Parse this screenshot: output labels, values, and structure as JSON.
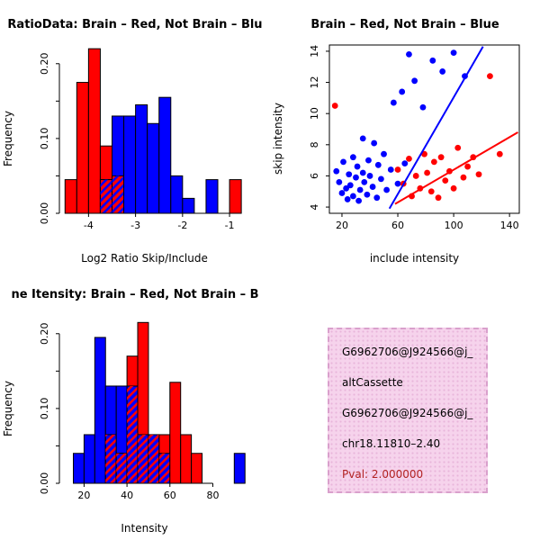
{
  "window": {
    "kind": "r-graphics-device",
    "background": "#ffffff"
  },
  "colors": {
    "brain": "#ff0000",
    "not_brain": "#0000ff",
    "axis": "#000000"
  },
  "chart_data": [
    {
      "type": "bar",
      "subtype": "histogram-overlay",
      "title": "RatioData: Brain – Red, Not Brain – Blu",
      "xlabel": "Log2 Ratio Skip/Include",
      "ylabel": "Frequency",
      "xlim": [
        -4.62,
        -0.58
      ],
      "ylim": [
        0,
        0.225
      ],
      "grid": false,
      "legend": "none",
      "bin_start": -4.5,
      "bin_width": 0.25,
      "xticks": [
        -4,
        -3,
        -2,
        -1
      ],
      "xtick_labels": [
        "-4",
        "-3",
        "-2",
        "-1"
      ],
      "yticks": [
        0,
        0.05,
        0.1,
        0.15,
        0.2
      ],
      "ytick_labels": [
        "0.00",
        "",
        "0.10",
        "",
        "0.20"
      ],
      "series": [
        {
          "name": "Brain",
          "color": "#ff0000",
          "values": [
            0.045,
            0.175,
            0.22,
            0.09,
            0.05,
            0,
            0,
            0,
            0,
            0,
            0,
            0,
            0,
            0,
            0.045
          ]
        },
        {
          "name": "Not Brain",
          "color": "#0000ff",
          "values": [
            0,
            0,
            0,
            0.045,
            0.13,
            0.13,
            0.145,
            0.12,
            0.155,
            0.05,
            0.02,
            0,
            0.045,
            0,
            0
          ]
        }
      ]
    },
    {
      "type": "scatter",
      "title": "Brain – Red, Not Brain – Blue",
      "xlabel": "include intensity",
      "ylabel": "skip intensity",
      "xlim": [
        11,
        147
      ],
      "ylim": [
        3.6,
        14.4
      ],
      "grid": false,
      "legend": "none",
      "xticks": [
        20,
        60,
        100,
        140
      ],
      "xtick_labels": [
        "20",
        "60",
        "100",
        "140"
      ],
      "yticks": [
        4,
        6,
        8,
        10,
        12,
        14
      ],
      "ytick_labels": [
        "4",
        "6",
        "8",
        "10",
        "12",
        "14"
      ],
      "series": [
        {
          "name": "Not Brain",
          "color": "#0000ff",
          "points": [
            [
              16,
              6.3
            ],
            [
              18,
              5.6
            ],
            [
              20,
              4.9
            ],
            [
              21,
              6.9
            ],
            [
              23,
              5.2
            ],
            [
              24,
              4.5
            ],
            [
              25,
              6.1
            ],
            [
              26,
              5.4
            ],
            [
              28,
              7.2
            ],
            [
              28,
              4.7
            ],
            [
              30,
              5.9
            ],
            [
              31,
              6.6
            ],
            [
              32,
              4.4
            ],
            [
              33,
              5.1
            ],
            [
              35,
              8.4
            ],
            [
              35,
              6.2
            ],
            [
              36,
              5.6
            ],
            [
              38,
              4.8
            ],
            [
              39,
              7.0
            ],
            [
              40,
              6.0
            ],
            [
              42,
              5.3
            ],
            [
              43,
              8.1
            ],
            [
              45,
              4.6
            ],
            [
              46,
              6.7
            ],
            [
              48,
              5.8
            ],
            [
              50,
              7.4
            ],
            [
              52,
              5.1
            ],
            [
              55,
              6.4
            ],
            [
              57,
              10.7
            ],
            [
              60,
              5.5
            ],
            [
              63,
              11.4
            ],
            [
              65,
              6.8
            ],
            [
              68,
              13.8
            ],
            [
              72,
              12.1
            ],
            [
              78,
              10.4
            ],
            [
              85,
              13.4
            ],
            [
              92,
              12.7
            ],
            [
              100,
              13.9
            ],
            [
              108,
              12.4
            ]
          ]
        },
        {
          "name": "Brain",
          "color": "#ff0000",
          "points": [
            [
              15,
              10.5
            ],
            [
              60,
              6.4
            ],
            [
              64,
              5.5
            ],
            [
              68,
              7.1
            ],
            [
              70,
              4.7
            ],
            [
              73,
              6.0
            ],
            [
              76,
              5.2
            ],
            [
              79,
              7.4
            ],
            [
              81,
              6.2
            ],
            [
              84,
              5.0
            ],
            [
              86,
              6.9
            ],
            [
              89,
              4.6
            ],
            [
              91,
              7.2
            ],
            [
              94,
              5.7
            ],
            [
              97,
              6.3
            ],
            [
              100,
              5.2
            ],
            [
              103,
              7.8
            ],
            [
              107,
              5.9
            ],
            [
              110,
              6.6
            ],
            [
              114,
              7.2
            ],
            [
              118,
              6.1
            ],
            [
              126,
              12.4
            ],
            [
              133,
              7.4
            ]
          ]
        }
      ],
      "fit_lines": [
        {
          "name": "not-brain-fit",
          "color": "#0000ff",
          "x1": 54,
          "y1": 3.9,
          "x2": 121,
          "y2": 14.3
        },
        {
          "name": "brain-fit",
          "color": "#ff0000",
          "x1": 58,
          "y1": 4.2,
          "x2": 146,
          "y2": 8.8
        }
      ]
    },
    {
      "type": "bar",
      "subtype": "histogram-overlay",
      "title": "ne Itensity: Brain – Red, Not Brain – B",
      "xlabel": "Intensity",
      "ylabel": "Frequency",
      "xlim": [
        8.5,
        97
      ],
      "ylim": [
        0,
        0.225
      ],
      "grid": false,
      "legend": "none",
      "bin_start": 10,
      "bin_width": 5,
      "xticks": [
        20,
        40,
        60,
        80
      ],
      "xtick_labels": [
        "20",
        "40",
        "60",
        "80"
      ],
      "yticks": [
        0,
        0.05,
        0.1,
        0.15,
        0.2
      ],
      "ytick_labels": [
        "0.00",
        "",
        "0.10",
        "",
        "0.20"
      ],
      "series": [
        {
          "name": "Not Brain",
          "color": "#0000ff",
          "values": [
            0,
            0.04,
            0.065,
            0.195,
            0.13,
            0.13,
            0.13,
            0.065,
            0.065,
            0.04,
            0,
            0,
            0,
            0,
            0,
            0,
            0.04
          ]
        },
        {
          "name": "Brain",
          "color": "#ff0000",
          "values": [
            0,
            0,
            0,
            0,
            0.065,
            0.04,
            0.17,
            0.215,
            0.065,
            0.065,
            0.135,
            0.065,
            0.04,
            0,
            0,
            0,
            0
          ]
        }
      ]
    }
  ],
  "panels": {
    "info_box": {
      "lines": [
        "G6962706@J924566@j_",
        "altCassette",
        "G6962706@J924566@j_",
        "chr18.11810–2.40"
      ],
      "pval_line": "Pval: 2.000000",
      "pval_color": "#b22222",
      "background": "#f6d3ec",
      "border_color": "#d9a0cc"
    }
  }
}
